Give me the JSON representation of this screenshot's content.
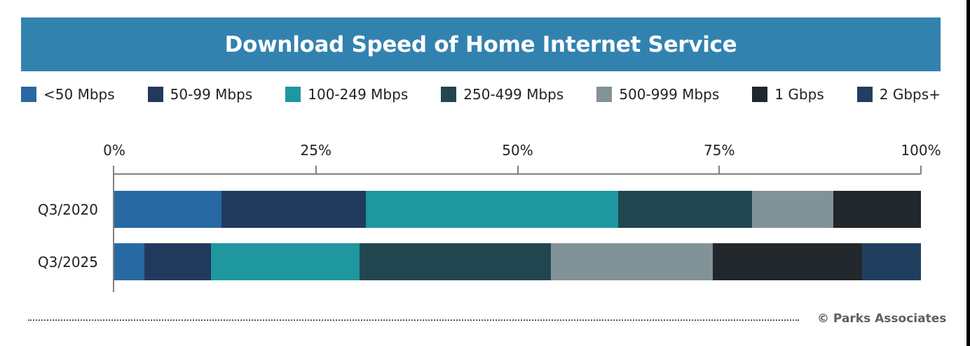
{
  "header": {
    "title": "Download Speed of Home Internet Service"
  },
  "legend": [
    {
      "label": "<50 Mbps",
      "color": "#2869a3"
    },
    {
      "label": "50-99 Mbps",
      "color": "#213a5c"
    },
    {
      "label": "100-249 Mbps",
      "color": "#1e979e"
    },
    {
      "label": "250-499 Mbps",
      "color": "#22464f"
    },
    {
      "label": "500-999 Mbps",
      "color": "#829398"
    },
    {
      "label": "1 Gbps",
      "color": "#22272b"
    },
    {
      "label": "2 Gbps+",
      "color": "#203f5f"
    }
  ],
  "axis": {
    "ticks": [
      "0%",
      "25%",
      "50%",
      "75%",
      "100%"
    ]
  },
  "footer": {
    "credit": "© Parks Associates"
  },
  "chart_data": {
    "type": "bar",
    "orientation": "horizontal",
    "stacked": "percent",
    "title": "Download Speed of Home Internet Service",
    "xlabel": "",
    "ylabel": "",
    "xlim": [
      0,
      100
    ],
    "x_tick_labels": [
      "0%",
      "25%",
      "50%",
      "75%",
      "100%"
    ],
    "grid": false,
    "legend_position": "top",
    "categories": [
      "Q3/2020",
      "Q3/2025"
    ],
    "series": [
      {
        "name": "<50 Mbps",
        "color": "#2869a3",
        "values": [
          13.3,
          3.7
        ]
      },
      {
        "name": "50-99 Mbps",
        "color": "#213a5c",
        "values": [
          17.9,
          8.3
        ]
      },
      {
        "name": "100-249 Mbps",
        "color": "#1e979e",
        "values": [
          31.3,
          18.4
        ]
      },
      {
        "name": "250-499 Mbps",
        "color": "#22464f",
        "values": [
          16.6,
          23.7
        ]
      },
      {
        "name": "500-999 Mbps",
        "color": "#829398",
        "values": [
          10.0,
          20.1
        ]
      },
      {
        "name": "1 Gbps",
        "color": "#22272b",
        "values": [
          10.9,
          18.5
        ]
      },
      {
        "name": "2 Gbps+",
        "color": "#203f5f",
        "values": [
          0.0,
          7.3
        ]
      }
    ],
    "source": "© Parks Associates"
  }
}
